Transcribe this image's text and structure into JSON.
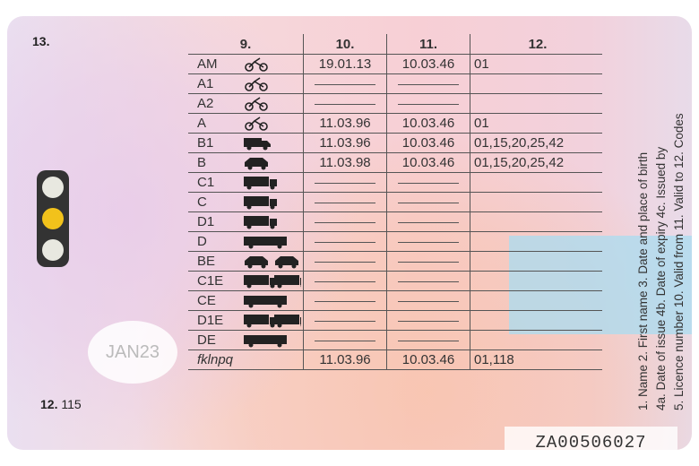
{
  "field_labels": {
    "photo": "13.",
    "categories": "9.",
    "valid_from": "10.",
    "valid_to": "11.",
    "codes": "12."
  },
  "stamp": "JAN23",
  "restriction": {
    "label": "12.",
    "value": "115"
  },
  "licence_number": "ZA00506027",
  "legend": [
    "1. Name  2. First name  3. Date and place of birth",
    "4a. Date of issue  4b. Date of expiry  4c. Issued by",
    "5. Licence number  10. Valid from  11. Valid to  12. Codes"
  ],
  "traffic_light": {
    "lit": "amber",
    "color": "#f2c21b"
  },
  "rows": [
    {
      "cat": "AM",
      "icon": "moped-icon",
      "from": "19.01.13",
      "to": "10.03.46",
      "codes": "01"
    },
    {
      "cat": "A1",
      "icon": "light-motorcycle-icon",
      "from": "",
      "to": "",
      "codes": ""
    },
    {
      "cat": "A2",
      "icon": "motorcycle-icon",
      "from": "",
      "to": "",
      "codes": ""
    },
    {
      "cat": "A",
      "icon": "motorcycle-icon",
      "from": "11.03.96",
      "to": "10.03.46",
      "codes": "01"
    },
    {
      "cat": "B1",
      "icon": "light-vehicle-icon",
      "from": "11.03.96",
      "to": "10.03.46",
      "codes": "01,15,20,25,42"
    },
    {
      "cat": "B",
      "icon": "car-icon",
      "from": "11.03.98",
      "to": "10.03.46",
      "codes": "01,15,20,25,42"
    },
    {
      "cat": "C1",
      "icon": "medium-truck-icon",
      "from": "",
      "to": "",
      "codes": ""
    },
    {
      "cat": "C",
      "icon": "truck-icon",
      "from": "",
      "to": "",
      "codes": ""
    },
    {
      "cat": "D1",
      "icon": "minibus-icon",
      "from": "",
      "to": "",
      "codes": ""
    },
    {
      "cat": "D",
      "icon": "bus-icon",
      "from": "",
      "to": "",
      "codes": ""
    },
    {
      "cat": "BE",
      "icon": "car-trailer-icon",
      "from": "",
      "to": "",
      "codes": ""
    },
    {
      "cat": "C1E",
      "icon": "medium-truck-trailer-icon",
      "from": "",
      "to": "",
      "codes": ""
    },
    {
      "cat": "CE",
      "icon": "truck-trailer-icon",
      "from": "",
      "to": "",
      "codes": ""
    },
    {
      "cat": "D1E",
      "icon": "minibus-trailer-icon",
      "from": "",
      "to": "",
      "codes": ""
    },
    {
      "cat": "DE",
      "icon": "bus-trailer-icon",
      "from": "",
      "to": "",
      "codes": ""
    },
    {
      "cat": "fklnpq",
      "icon": "",
      "from": "11.03.96",
      "to": "10.03.46",
      "codes": "01,118"
    }
  ]
}
